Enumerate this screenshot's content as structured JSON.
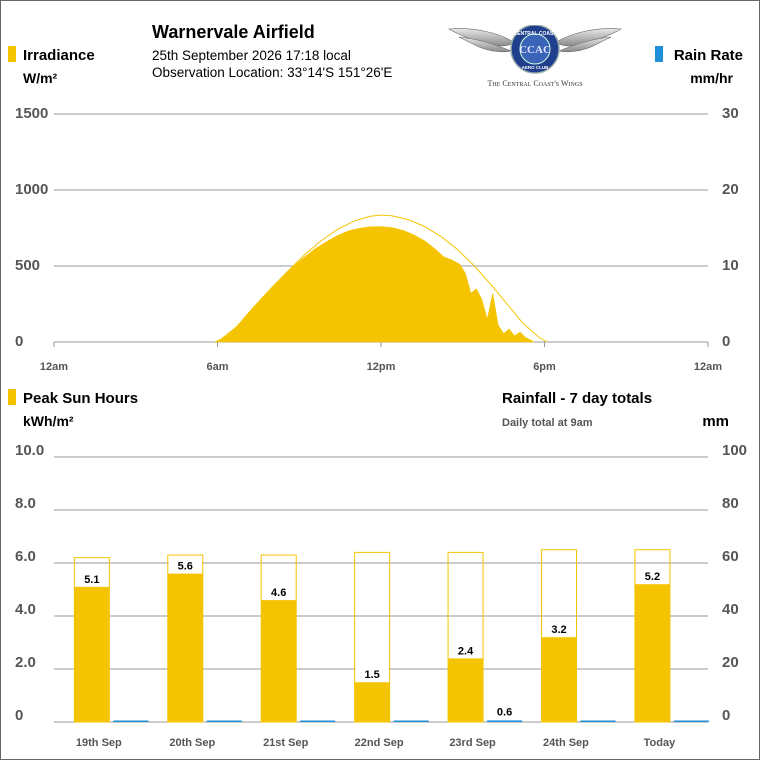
{
  "header": {
    "station": "Warnervale Airfield",
    "datetime": "25th September 2026  17:18 local",
    "location": "Observation Location:  33°14'S 151°26'E",
    "logo_ring_text": "CENTRAL COAST",
    "logo_bottom_text": "AERO CLUB",
    "logo_monogram": "CCAC",
    "logo_tagline": "The Central Coast's Wings"
  },
  "top_legend": {
    "left_title": "Irradiance",
    "left_unit": "W/m²",
    "right_title": "Rain Rate",
    "right_unit": "mm/hr"
  },
  "bottom_legend": {
    "left_title": "Peak Sun Hours",
    "left_unit": "kWh/m²",
    "right_title": "Rainfall - 7 day totals",
    "right_subtitle": "Daily total at 9am",
    "right_unit": "mm"
  },
  "colors": {
    "sun": "#F5C400",
    "rain": "#1E8FD8",
    "grid": "#999999",
    "axis_text": "#555555",
    "logo_blue": "#1F3E8C"
  },
  "chart_data": [
    {
      "type": "area",
      "x_unit": "hour of day",
      "xlim": [
        0,
        24
      ],
      "x_tick_values": [
        0,
        6,
        12,
        18,
        24
      ],
      "x_tick_labels": [
        "12am",
        "6am",
        "12pm",
        "6pm",
        "12am"
      ],
      "ylim": [
        0,
        1500
      ],
      "y_ticks": [
        "0",
        "500",
        "1000",
        "1500"
      ],
      "ylim_right": [
        0,
        30
      ],
      "y_ticks_right": [
        "0",
        "10",
        "20",
        "30"
      ],
      "grid": true,
      "series": [
        {
          "name": "Irradiance",
          "kind": "area",
          "x": [
            5.9,
            6.3,
            6.7,
            7.0,
            7.3,
            7.6,
            8.0,
            8.4,
            8.8,
            9.2,
            9.6,
            10.0,
            10.4,
            10.8,
            11.2,
            11.6,
            12.0,
            12.4,
            12.8,
            13.2,
            13.6,
            14.0,
            14.3,
            14.6,
            14.9,
            15.1,
            15.3,
            15.5,
            15.7,
            15.9,
            16.1,
            16.3,
            16.5,
            16.7,
            16.9,
            17.1,
            17.3,
            17.5,
            17.6
          ],
          "y": [
            0,
            35,
            95,
            165,
            225,
            285,
            360,
            430,
            500,
            560,
            615,
            660,
            700,
            730,
            748,
            758,
            760,
            752,
            735,
            705,
            665,
            610,
            560,
            540,
            510,
            450,
            320,
            350,
            280,
            150,
            320,
            110,
            55,
            85,
            40,
            65,
            30,
            12,
            0
          ]
        },
        {
          "name": "Clear-sky",
          "kind": "line",
          "x": [
            6.0,
            6.7,
            7.4,
            8.0,
            8.6,
            9.2,
            9.8,
            10.4,
            11.0,
            11.6,
            12.0,
            12.4,
            13.0,
            13.6,
            14.2,
            14.8,
            15.4,
            16.0,
            16.6,
            17.2,
            17.8,
            18.1
          ],
          "y": [
            0,
            100,
            240,
            360,
            470,
            575,
            665,
            740,
            795,
            827,
            835,
            830,
            805,
            760,
            695,
            610,
            505,
            385,
            255,
            125,
            30,
            0
          ]
        },
        {
          "name": "Rain Rate",
          "kind": "line",
          "axis": "right",
          "x": [
            0,
            24
          ],
          "y": [
            0,
            0
          ]
        }
      ]
    },
    {
      "type": "bar",
      "categories": [
        "19th Sep",
        "20th Sep",
        "21st Sep",
        "22nd Sep",
        "23rd Sep",
        "24th Sep",
        "Today"
      ],
      "ylim": [
        0,
        10
      ],
      "y_ticks": [
        "0",
        "2.0",
        "4.0",
        "6.0",
        "8.0",
        "10.0"
      ],
      "ylim_right": [
        0,
        100
      ],
      "y_ticks_right": [
        "0",
        "20",
        "40",
        "60",
        "80",
        "100"
      ],
      "grid": true,
      "series": [
        {
          "name": "Peak Sun Hours",
          "axis": "left",
          "values": [
            5.1,
            5.6,
            4.6,
            1.5,
            2.4,
            3.2,
            5.2
          ],
          "labels": [
            "5.1",
            "5.6",
            "4.6",
            "1.5",
            "2.4",
            "3.2",
            "5.2"
          ]
        },
        {
          "name": "Clear-sky Sun Hours",
          "axis": "left",
          "values": [
            6.2,
            6.3,
            6.3,
            6.4,
            6.4,
            6.5,
            6.5
          ]
        },
        {
          "name": "Rainfall",
          "axis": "right",
          "values": [
            0,
            0,
            0,
            0,
            0.6,
            0,
            0
          ],
          "labels": [
            "",
            "",
            "",
            "",
            "0.6",
            "",
            ""
          ]
        }
      ]
    }
  ]
}
